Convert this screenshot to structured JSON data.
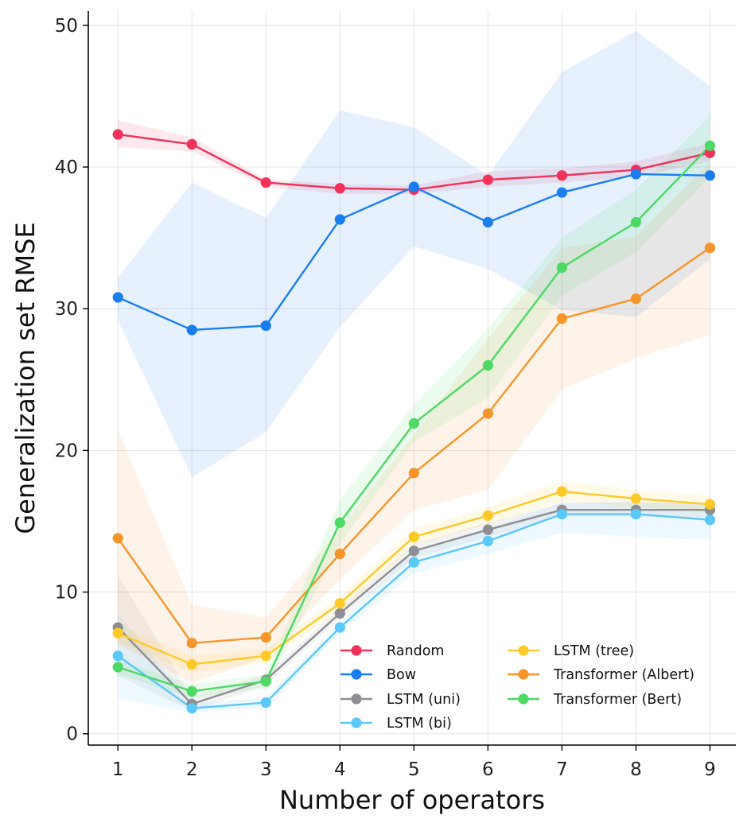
{
  "chart_data": {
    "type": "line",
    "title": "",
    "xlabel": "Number of operators",
    "ylabel": "Generalization set RMSE",
    "x": [
      1,
      2,
      3,
      4,
      5,
      6,
      7,
      8,
      9
    ],
    "x_ticks": [
      "1",
      "2",
      "3",
      "4",
      "5",
      "6",
      "7",
      "8",
      "9"
    ],
    "y_ticks": [
      "0",
      "10",
      "20",
      "30",
      "40",
      "50"
    ],
    "ylim": [
      -0.8,
      51
    ],
    "xlim": [
      0.6,
      9.35
    ],
    "grid": true,
    "legend_position": "bottom-right",
    "series": [
      {
        "name": "Random",
        "color": "#f0325a",
        "values": [
          42.3,
          41.6,
          38.9,
          38.5,
          38.4,
          39.1,
          39.4,
          39.8,
          41.0
        ],
        "lower": [
          41.4,
          41.1,
          38.6,
          38.1,
          38.1,
          38.6,
          38.9,
          39.3,
          40.4
        ],
        "upper": [
          43.3,
          42.1,
          39.1,
          38.8,
          38.7,
          39.7,
          39.9,
          40.4,
          41.7
        ]
      },
      {
        "name": "Bow",
        "color": "#1a7ef0",
        "values": [
          30.8,
          28.5,
          28.8,
          36.3,
          38.6,
          36.1,
          38.2,
          39.5,
          39.4
        ],
        "lower": [
          29.2,
          18.1,
          21.3,
          28.7,
          34.4,
          32.8,
          29.9,
          29.4,
          33.5
        ],
        "upper": [
          32.2,
          38.9,
          36.4,
          44.0,
          42.8,
          39.4,
          46.7,
          49.6,
          45.7
        ]
      },
      {
        "name": "LSTM (uni)",
        "color": "#8e8e93",
        "values": [
          7.5,
          2.1,
          3.8,
          8.5,
          12.9,
          14.4,
          15.8,
          15.8,
          15.8
        ],
        "lower": [
          4.1,
          1.6,
          3.4,
          8.1,
          12.4,
          13.9,
          15.3,
          15.3,
          15.3
        ],
        "upper": [
          11.2,
          2.6,
          4.2,
          8.9,
          13.4,
          14.9,
          16.3,
          16.3,
          16.3
        ]
      },
      {
        "name": "LSTM (bi)",
        "color": "#5ac8fa",
        "values": [
          5.5,
          1.8,
          2.2,
          7.5,
          12.1,
          13.6,
          15.5,
          15.5,
          15.1
        ],
        "lower": [
          2.5,
          1.5,
          1.8,
          7.1,
          11.3,
          12.7,
          14.2,
          13.9,
          13.7
        ],
        "upper": [
          8.5,
          2.1,
          2.6,
          7.9,
          12.9,
          14.5,
          16.3,
          16.4,
          16.2
        ]
      },
      {
        "name": "LSTM (tree)",
        "color": "#ffca28",
        "values": [
          7.1,
          4.9,
          5.5,
          9.2,
          13.9,
          15.4,
          17.1,
          16.6,
          16.2
        ],
        "lower": [
          6.5,
          4.3,
          5.0,
          8.7,
          13.3,
          14.8,
          16.4,
          16.0,
          15.6
        ],
        "upper": [
          7.7,
          5.5,
          6.0,
          9.7,
          14.5,
          16.0,
          17.8,
          17.2,
          16.8
        ]
      },
      {
        "name": "Transformer (Albert)",
        "color": "#f7952a",
        "values": [
          13.8,
          6.4,
          6.8,
          12.7,
          18.4,
          22.6,
          29.3,
          30.7,
          34.3
        ],
        "lower": [
          6.3,
          3.6,
          5.4,
          10.9,
          15.8,
          17.2,
          24.3,
          26.5,
          28.1
        ],
        "upper": [
          21.4,
          9.1,
          8.2,
          14.5,
          21.1,
          27.9,
          34.3,
          35.1,
          40.3
        ]
      },
      {
        "name": "Transformer (Bert)",
        "color": "#4cd964",
        "values": [
          4.7,
          3.0,
          3.7,
          14.9,
          21.9,
          26.0,
          32.9,
          36.1,
          41.5
        ],
        "lower": [
          4.2,
          2.5,
          3.2,
          13.4,
          20.6,
          23.7,
          30.9,
          34.0,
          39.3
        ],
        "upper": [
          5.2,
          3.5,
          4.2,
          16.5,
          23.2,
          28.6,
          35.0,
          38.4,
          43.6
        ]
      }
    ]
  }
}
